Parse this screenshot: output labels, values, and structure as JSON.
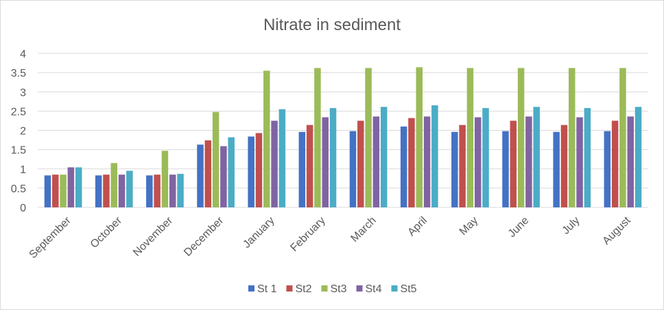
{
  "chart_data": {
    "type": "bar",
    "title": "Nitrate in sediment",
    "xlabel": "",
    "ylabel": "",
    "ylim": [
      0,
      4
    ],
    "yticks": [
      "0",
      "0.5",
      "1",
      "1.5",
      "2",
      "2.5",
      "3",
      "3.5",
      "4"
    ],
    "grid": true,
    "legend_position": "bottom",
    "categories": [
      "September",
      "October",
      "November",
      "December",
      "January",
      "February",
      "March",
      "April",
      "May",
      "June",
      "July",
      "August"
    ],
    "series": [
      {
        "name": "St 1",
        "color": "#4472C4",
        "values": [
          0.83,
          0.83,
          0.83,
          1.63,
          1.84,
          1.96,
          1.98,
          2.1,
          1.96,
          1.98,
          1.96,
          1.98
        ]
      },
      {
        "name": "St2",
        "color": "#C0504D",
        "values": [
          0.85,
          0.85,
          0.85,
          1.74,
          1.93,
          2.14,
          2.25,
          2.32,
          2.14,
          2.25,
          2.14,
          2.25
        ]
      },
      {
        "name": "St3",
        "color": "#9BBB59",
        "values": [
          0.85,
          1.15,
          1.47,
          2.48,
          3.55,
          3.62,
          3.62,
          3.64,
          3.62,
          3.62,
          3.62,
          3.62
        ]
      },
      {
        "name": "St4",
        "color": "#8064A2",
        "values": [
          1.04,
          0.85,
          0.85,
          1.59,
          2.25,
          2.34,
          2.36,
          2.36,
          2.34,
          2.36,
          2.34,
          2.36
        ]
      },
      {
        "name": "St5",
        "color": "#4BACC6",
        "values": [
          1.04,
          0.95,
          0.87,
          1.82,
          2.55,
          2.58,
          2.61,
          2.65,
          2.58,
          2.61,
          2.58,
          2.61
        ]
      }
    ]
  }
}
